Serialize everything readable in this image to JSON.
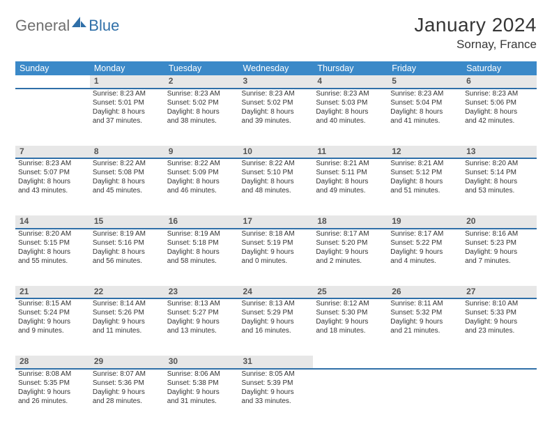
{
  "brand": {
    "text1": "General",
    "text2": "Blue",
    "text_color": "#6f6f6f",
    "accent_color": "#2f6fa8"
  },
  "title": "January 2024",
  "location": "Sornay, France",
  "colors": {
    "header_bg": "#3b89c8",
    "header_text": "#ffffff",
    "daynum_bg": "#e7e7e7",
    "daynum_border": "#2f6fa8",
    "body_text": "#333333"
  },
  "weekdays": [
    "Sunday",
    "Monday",
    "Tuesday",
    "Wednesday",
    "Thursday",
    "Friday",
    "Saturday"
  ],
  "weeks": [
    [
      null,
      {
        "n": "1",
        "l1": "Sunrise: 8:23 AM",
        "l2": "Sunset: 5:01 PM",
        "l3": "Daylight: 8 hours",
        "l4": "and 37 minutes."
      },
      {
        "n": "2",
        "l1": "Sunrise: 8:23 AM",
        "l2": "Sunset: 5:02 PM",
        "l3": "Daylight: 8 hours",
        "l4": "and 38 minutes."
      },
      {
        "n": "3",
        "l1": "Sunrise: 8:23 AM",
        "l2": "Sunset: 5:02 PM",
        "l3": "Daylight: 8 hours",
        "l4": "and 39 minutes."
      },
      {
        "n": "4",
        "l1": "Sunrise: 8:23 AM",
        "l2": "Sunset: 5:03 PM",
        "l3": "Daylight: 8 hours",
        "l4": "and 40 minutes."
      },
      {
        "n": "5",
        "l1": "Sunrise: 8:23 AM",
        "l2": "Sunset: 5:04 PM",
        "l3": "Daylight: 8 hours",
        "l4": "and 41 minutes."
      },
      {
        "n": "6",
        "l1": "Sunrise: 8:23 AM",
        "l2": "Sunset: 5:06 PM",
        "l3": "Daylight: 8 hours",
        "l4": "and 42 minutes."
      }
    ],
    [
      {
        "n": "7",
        "l1": "Sunrise: 8:23 AM",
        "l2": "Sunset: 5:07 PM",
        "l3": "Daylight: 8 hours",
        "l4": "and 43 minutes."
      },
      {
        "n": "8",
        "l1": "Sunrise: 8:22 AM",
        "l2": "Sunset: 5:08 PM",
        "l3": "Daylight: 8 hours",
        "l4": "and 45 minutes."
      },
      {
        "n": "9",
        "l1": "Sunrise: 8:22 AM",
        "l2": "Sunset: 5:09 PM",
        "l3": "Daylight: 8 hours",
        "l4": "and 46 minutes."
      },
      {
        "n": "10",
        "l1": "Sunrise: 8:22 AM",
        "l2": "Sunset: 5:10 PM",
        "l3": "Daylight: 8 hours",
        "l4": "and 48 minutes."
      },
      {
        "n": "11",
        "l1": "Sunrise: 8:21 AM",
        "l2": "Sunset: 5:11 PM",
        "l3": "Daylight: 8 hours",
        "l4": "and 49 minutes."
      },
      {
        "n": "12",
        "l1": "Sunrise: 8:21 AM",
        "l2": "Sunset: 5:12 PM",
        "l3": "Daylight: 8 hours",
        "l4": "and 51 minutes."
      },
      {
        "n": "13",
        "l1": "Sunrise: 8:20 AM",
        "l2": "Sunset: 5:14 PM",
        "l3": "Daylight: 8 hours",
        "l4": "and 53 minutes."
      }
    ],
    [
      {
        "n": "14",
        "l1": "Sunrise: 8:20 AM",
        "l2": "Sunset: 5:15 PM",
        "l3": "Daylight: 8 hours",
        "l4": "and 55 minutes."
      },
      {
        "n": "15",
        "l1": "Sunrise: 8:19 AM",
        "l2": "Sunset: 5:16 PM",
        "l3": "Daylight: 8 hours",
        "l4": "and 56 minutes."
      },
      {
        "n": "16",
        "l1": "Sunrise: 8:19 AM",
        "l2": "Sunset: 5:18 PM",
        "l3": "Daylight: 8 hours",
        "l4": "and 58 minutes."
      },
      {
        "n": "17",
        "l1": "Sunrise: 8:18 AM",
        "l2": "Sunset: 5:19 PM",
        "l3": "Daylight: 9 hours",
        "l4": "and 0 minutes."
      },
      {
        "n": "18",
        "l1": "Sunrise: 8:17 AM",
        "l2": "Sunset: 5:20 PM",
        "l3": "Daylight: 9 hours",
        "l4": "and 2 minutes."
      },
      {
        "n": "19",
        "l1": "Sunrise: 8:17 AM",
        "l2": "Sunset: 5:22 PM",
        "l3": "Daylight: 9 hours",
        "l4": "and 4 minutes."
      },
      {
        "n": "20",
        "l1": "Sunrise: 8:16 AM",
        "l2": "Sunset: 5:23 PM",
        "l3": "Daylight: 9 hours",
        "l4": "and 7 minutes."
      }
    ],
    [
      {
        "n": "21",
        "l1": "Sunrise: 8:15 AM",
        "l2": "Sunset: 5:24 PM",
        "l3": "Daylight: 9 hours",
        "l4": "and 9 minutes."
      },
      {
        "n": "22",
        "l1": "Sunrise: 8:14 AM",
        "l2": "Sunset: 5:26 PM",
        "l3": "Daylight: 9 hours",
        "l4": "and 11 minutes."
      },
      {
        "n": "23",
        "l1": "Sunrise: 8:13 AM",
        "l2": "Sunset: 5:27 PM",
        "l3": "Daylight: 9 hours",
        "l4": "and 13 minutes."
      },
      {
        "n": "24",
        "l1": "Sunrise: 8:13 AM",
        "l2": "Sunset: 5:29 PM",
        "l3": "Daylight: 9 hours",
        "l4": "and 16 minutes."
      },
      {
        "n": "25",
        "l1": "Sunrise: 8:12 AM",
        "l2": "Sunset: 5:30 PM",
        "l3": "Daylight: 9 hours",
        "l4": "and 18 minutes."
      },
      {
        "n": "26",
        "l1": "Sunrise: 8:11 AM",
        "l2": "Sunset: 5:32 PM",
        "l3": "Daylight: 9 hours",
        "l4": "and 21 minutes."
      },
      {
        "n": "27",
        "l1": "Sunrise: 8:10 AM",
        "l2": "Sunset: 5:33 PM",
        "l3": "Daylight: 9 hours",
        "l4": "and 23 minutes."
      }
    ],
    [
      {
        "n": "28",
        "l1": "Sunrise: 8:08 AM",
        "l2": "Sunset: 5:35 PM",
        "l3": "Daylight: 9 hours",
        "l4": "and 26 minutes."
      },
      {
        "n": "29",
        "l1": "Sunrise: 8:07 AM",
        "l2": "Sunset: 5:36 PM",
        "l3": "Daylight: 9 hours",
        "l4": "and 28 minutes."
      },
      {
        "n": "30",
        "l1": "Sunrise: 8:06 AM",
        "l2": "Sunset: 5:38 PM",
        "l3": "Daylight: 9 hours",
        "l4": "and 31 minutes."
      },
      {
        "n": "31",
        "l1": "Sunrise: 8:05 AM",
        "l2": "Sunset: 5:39 PM",
        "l3": "Daylight: 9 hours",
        "l4": "and 33 minutes."
      },
      null,
      null,
      null
    ]
  ]
}
